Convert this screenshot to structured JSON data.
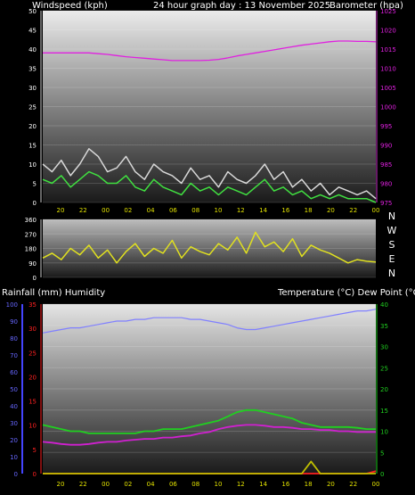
{
  "header": {
    "left_label": "Windspeed (kph)",
    "title": "24 hour graph day : 13 November 2025",
    "right_label": "Barometer (hpa)"
  },
  "colors": {
    "wind_gust": "#d8d8d8",
    "wind_avg": "#40e040",
    "barometer": "#e020e0",
    "direction": "#e0e020",
    "humidity": "#8080ff",
    "temperature": "#20d020",
    "dew_point": "#d020d0",
    "rainfall": "#ff2020",
    "rain_rate": "#c0c000"
  },
  "bottom_labels": {
    "rainfall_humidity": "Rainfall (mm)  Humidity",
    "temp_dew": "Temperature (°C) Dew Point (°C)"
  },
  "chart_data": [
    {
      "id": "wind_baro",
      "type": "line",
      "x_ticks": [
        "20",
        "22",
        "00",
        "02",
        "04",
        "06",
        "08",
        "10",
        "12",
        "14",
        "16",
        "18",
        "20",
        "22",
        "00"
      ],
      "y_left": {
        "label": "Windspeed (kph)",
        "range": [
          0,
          50
        ],
        "ticks": [
          0,
          5,
          10,
          15,
          20,
          25,
          30,
          35,
          40,
          45,
          50
        ]
      },
      "y_right": {
        "label": "Barometer (hpa)",
        "range": [
          975,
          1025
        ],
        "ticks": [
          975,
          980,
          985,
          990,
          995,
          1000,
          1005,
          1010,
          1015,
          1020,
          1025
        ]
      },
      "series": [
        {
          "name": "Barometer",
          "axis": "right",
          "values": [
            1014,
            1014,
            1014,
            1014,
            1014,
            1014,
            1013.8,
            1013.6,
            1013.3,
            1013,
            1012.8,
            1012.6,
            1012.4,
            1012.2,
            1012,
            1012,
            1012,
            1012,
            1012.1,
            1012.3,
            1012.7,
            1013.2,
            1013.6,
            1014,
            1014.4,
            1014.8,
            1015.2,
            1015.6,
            1016,
            1016.3,
            1016.6,
            1016.9,
            1017.1,
            1017.1,
            1017,
            1017,
            1016.9
          ]
        },
        {
          "name": "Gust",
          "axis": "left",
          "values": [
            10,
            8,
            11,
            7,
            10,
            14,
            12,
            8,
            9,
            12,
            8,
            6,
            10,
            8,
            7,
            5,
            9,
            6,
            7,
            4,
            8,
            6,
            5,
            7,
            10,
            6,
            8,
            4,
            6,
            3,
            5,
            2,
            4,
            3,
            2,
            3,
            1
          ]
        },
        {
          "name": "Average",
          "axis": "left",
          "values": [
            6,
            5,
            7,
            4,
            6,
            8,
            7,
            5,
            5,
            7,
            4,
            3,
            6,
            4,
            3,
            2,
            5,
            3,
            4,
            2,
            4,
            3,
            2,
            4,
            6,
            3,
            4,
            2,
            3,
            1,
            2,
            1,
            2,
            1,
            1,
            1,
            0
          ]
        }
      ]
    },
    {
      "id": "direction",
      "type": "line",
      "x_ticks": [],
      "y_left": {
        "range": [
          0,
          360
        ],
        "ticks": [
          0,
          90,
          180,
          270,
          360
        ]
      },
      "y_right_labels": [
        "N",
        "W",
        "S",
        "E",
        "N"
      ],
      "series": [
        {
          "name": "Wind direction",
          "axis": "left",
          "values": [
            120,
            150,
            110,
            180,
            140,
            200,
            120,
            170,
            90,
            160,
            210,
            130,
            180,
            150,
            230,
            120,
            190,
            160,
            140,
            210,
            170,
            250,
            150,
            280,
            190,
            220,
            160,
            240,
            130,
            200,
            170,
            150,
            120,
            90,
            110,
            100,
            95
          ]
        }
      ]
    },
    {
      "id": "temp_hum_rain",
      "type": "line",
      "x_ticks": [
        "20",
        "22",
        "00",
        "02",
        "04",
        "06",
        "08",
        "10",
        "12",
        "14",
        "16",
        "18",
        "20",
        "22",
        "00"
      ],
      "y_humidity": {
        "label": "Humidity",
        "range": [
          0,
          100
        ],
        "ticks": [
          0,
          10,
          20,
          30,
          40,
          50,
          60,
          70,
          80,
          90,
          100
        ]
      },
      "y_rain": {
        "label": "Rainfall (mm)",
        "range": [
          0,
          35
        ],
        "ticks": [
          0,
          5,
          10,
          15,
          20,
          25,
          30,
          35
        ]
      },
      "y_temp": {
        "label": "Temperature (°C)",
        "range": [
          0,
          40
        ],
        "ticks": [
          0,
          5,
          10,
          15,
          20,
          25,
          30,
          35,
          40
        ]
      },
      "series": [
        {
          "name": "Humidity",
          "axis": "humidity",
          "values": [
            83,
            84,
            85,
            86,
            86,
            87,
            88,
            89,
            90,
            90,
            91,
            91,
            92,
            92,
            92,
            92,
            91,
            91,
            90,
            89,
            88,
            86,
            85,
            85,
            86,
            87,
            88,
            89,
            90,
            91,
            92,
            93,
            94,
            95,
            96,
            96,
            97
          ]
        },
        {
          "name": "Temperature",
          "axis": "temp",
          "values": [
            11.5,
            11,
            10.5,
            10,
            10,
            9.5,
            9.5,
            9.5,
            9.5,
            9.5,
            9.5,
            10,
            10,
            10.5,
            10.5,
            10.5,
            11,
            11.5,
            12,
            12.5,
            13.5,
            14.5,
            15,
            15,
            14.5,
            14,
            13.5,
            13,
            12,
            11.5,
            11,
            11,
            11,
            11,
            10.8,
            10.5,
            10.5
          ]
        },
        {
          "name": "Dew Point",
          "axis": "temp",
          "values": [
            7.5,
            7.3,
            7,
            6.8,
            6.8,
            7,
            7.3,
            7.5,
            7.5,
            7.8,
            8,
            8.2,
            8.2,
            8.5,
            8.5,
            8.8,
            9,
            9.5,
            9.8,
            10.5,
            11,
            11.3,
            11.5,
            11.5,
            11.3,
            11,
            11,
            10.8,
            10.5,
            10.5,
            10.3,
            10.3,
            10,
            10,
            9.8,
            9.8,
            9.8
          ]
        },
        {
          "name": "Rainfall",
          "axis": "rain",
          "values": [
            0,
            0,
            0,
            0,
            0,
            0,
            0,
            0,
            0,
            0,
            0,
            0,
            0,
            0,
            0,
            0,
            0,
            0,
            0,
            0,
            0,
            0,
            0,
            0,
            0,
            0,
            0,
            0,
            0,
            0,
            0,
            0,
            0,
            0,
            0,
            0,
            0.5
          ]
        },
        {
          "name": "Rain rate",
          "axis": "rain",
          "values": [
            0,
            0,
            0,
            0,
            0,
            0,
            0,
            0,
            0,
            0,
            0,
            0,
            0,
            0,
            0,
            0,
            0,
            0,
            0,
            0,
            0,
            0,
            0,
            0,
            0,
            0,
            0,
            0,
            0,
            2.5,
            0,
            0,
            0,
            0,
            0,
            0,
            0
          ]
        }
      ]
    }
  ]
}
